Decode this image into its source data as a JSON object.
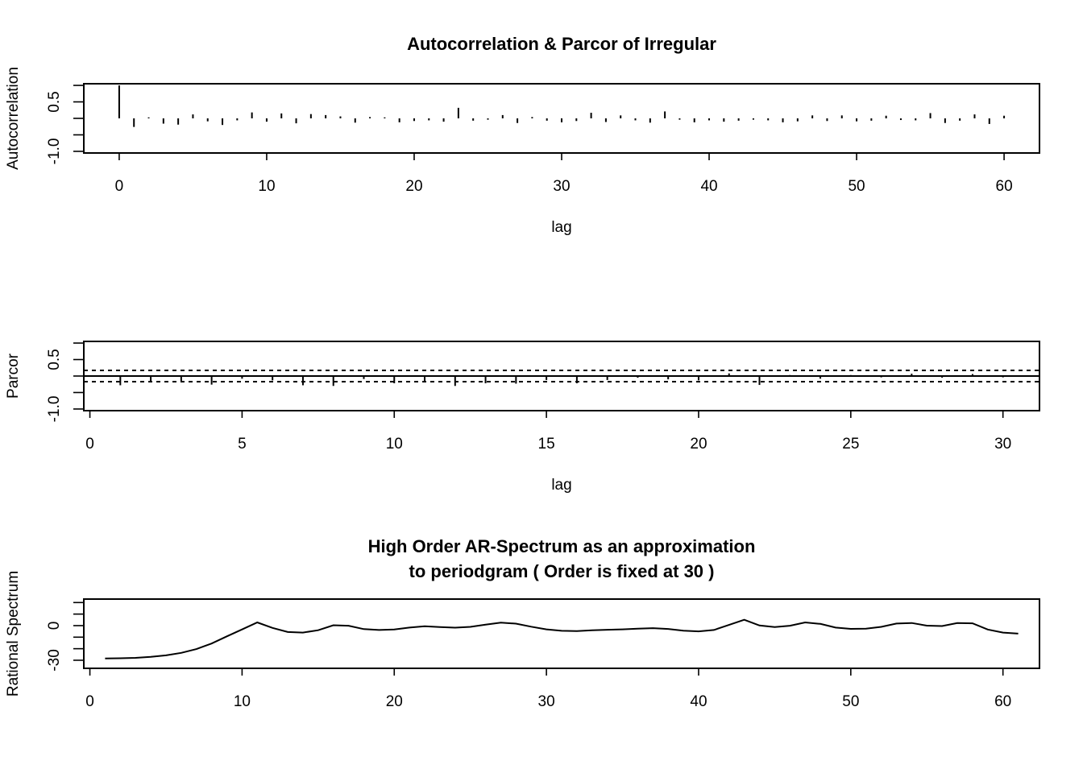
{
  "chart_data": [
    {
      "id": "acf",
      "type": "bar",
      "title": "Autocorrelation & Parcor of Irregular",
      "xlabel": "lag",
      "ylabel": "Autocorrelation",
      "xlim": [
        -2.4,
        62.4
      ],
      "ylim": [
        -1.05,
        1.05
      ],
      "xticks": [
        0,
        10,
        20,
        30,
        40,
        50,
        60
      ],
      "yticks": [
        -1.0,
        -0.5,
        0,
        0.5,
        1.0
      ],
      "ytick_labels": [
        "-1.0",
        "",
        "",
        "0.5",
        ""
      ],
      "x": [
        0,
        1,
        2,
        3,
        4,
        5,
        6,
        7,
        8,
        9,
        10,
        11,
        12,
        13,
        14,
        15,
        16,
        17,
        18,
        19,
        20,
        21,
        22,
        23,
        24,
        25,
        26,
        27,
        28,
        29,
        30,
        31,
        32,
        33,
        34,
        35,
        36,
        37,
        38,
        39,
        40,
        41,
        42,
        43,
        44,
        45,
        46,
        47,
        48,
        49,
        50,
        51,
        52,
        53,
        54,
        55,
        56,
        57,
        58,
        59,
        60
      ],
      "values": [
        1.0,
        -0.26,
        0.03,
        -0.16,
        -0.19,
        0.12,
        -0.09,
        -0.2,
        -0.06,
        0.18,
        -0.1,
        0.15,
        -0.15,
        0.13,
        0.1,
        0.06,
        -0.13,
        0.04,
        0.03,
        -0.12,
        -0.08,
        -0.06,
        -0.1,
        0.32,
        -0.07,
        -0.04,
        0.1,
        -0.14,
        0.04,
        -0.07,
        -0.12,
        -0.08,
        0.17,
        -0.11,
        0.09,
        -0.06,
        -0.13,
        0.21,
        -0.04,
        -0.12,
        -0.06,
        -0.1,
        -0.07,
        -0.04,
        -0.06,
        -0.12,
        -0.09,
        0.09,
        -0.08,
        0.09,
        -0.09,
        -0.07,
        0.08,
        -0.05,
        -0.06,
        0.16,
        -0.14,
        -0.07,
        0.12,
        -0.17,
        0.08
      ]
    },
    {
      "id": "parcor",
      "type": "bar",
      "title": "",
      "xlabel": "lag",
      "ylabel": "Parcor",
      "xlim": [
        -0.2,
        31.2
      ],
      "ylim": [
        -1.05,
        1.05
      ],
      "xticks": [
        0,
        5,
        10,
        15,
        20,
        25,
        30
      ],
      "yticks": [
        -1.0,
        -0.5,
        0,
        0.5,
        1.0
      ],
      "ytick_labels": [
        "-1.0",
        "",
        "",
        "0.5",
        ""
      ],
      "bounds": [
        0.17,
        -0.17
      ],
      "x": [
        1,
        2,
        3,
        4,
        5,
        6,
        7,
        8,
        9,
        10,
        11,
        12,
        13,
        14,
        15,
        16,
        17,
        18,
        19,
        20,
        21,
        22,
        23,
        24,
        25,
        26,
        27,
        28,
        29,
        30
      ],
      "values": [
        -0.28,
        -0.16,
        -0.15,
        -0.26,
        -0.08,
        -0.13,
        -0.28,
        -0.3,
        -0.09,
        -0.22,
        -0.17,
        -0.3,
        -0.22,
        -0.23,
        -0.12,
        -0.22,
        -0.12,
        -0.05,
        -0.1,
        -0.13,
        0.08,
        -0.27,
        0.03,
        -0.08,
        0.03,
        -0.04,
        0.07,
        -0.05,
        0.06,
        -0.04
      ]
    },
    {
      "id": "spectrum",
      "type": "line",
      "title": "High Order AR-Spectrum as an approximation\n to periodgram ( Order is fixed at 30 )",
      "title_lines": [
        "High Order AR-Spectrum as an approximation",
        "to periodgram ( Order is fixed at 30 )"
      ],
      "xlabel": "",
      "ylabel": "Rational Spectrum",
      "xlim": [
        -0.4,
        62.4
      ],
      "ylim": [
        -37,
        23
      ],
      "xticks": [
        0,
        10,
        20,
        30,
        40,
        50,
        60
      ],
      "yticks": [
        -30,
        -20,
        -10,
        0,
        10,
        20
      ],
      "ytick_labels": [
        "-30",
        "",
        "",
        "0",
        "",
        ""
      ],
      "x": [
        1,
        2,
        3,
        4,
        5,
        6,
        7,
        8,
        9,
        10,
        11,
        12,
        13,
        14,
        15,
        16,
        17,
        18,
        19,
        20,
        21,
        22,
        23,
        24,
        25,
        26,
        27,
        28,
        29,
        30,
        31,
        32,
        33,
        34,
        35,
        36,
        37,
        38,
        39,
        40,
        41,
        42,
        43,
        44,
        45,
        46,
        47,
        48,
        49,
        50,
        51,
        52,
        53,
        54,
        55,
        56,
        57,
        58,
        59,
        60,
        61
      ],
      "values": [
        -28.4,
        -28.3,
        -27.9,
        -27.1,
        -25.8,
        -23.6,
        -20.3,
        -15.5,
        -9.3,
        -3.3,
        2.8,
        -2.0,
        -5.5,
        -6.0,
        -4.0,
        0.3,
        -0.1,
        -3.0,
        -3.8,
        -3.3,
        -1.7,
        -0.5,
        -1.2,
        -1.8,
        -1.1,
        0.9,
        2.6,
        1.7,
        -0.9,
        -3.2,
        -4.5,
        -4.7,
        -4.1,
        -3.6,
        -3.2,
        -2.7,
        -2.2,
        -2.9,
        -4.4,
        -5.0,
        -3.8,
        0.6,
        5.1,
        0.1,
        -1.3,
        -0.1,
        2.8,
        1.5,
        -1.7,
        -2.8,
        -2.6,
        -1.1,
        1.8,
        2.3,
        0.0,
        -0.4,
        2.2,
        2.0,
        -3.4,
        -6.0,
        -6.9
      ]
    }
  ]
}
